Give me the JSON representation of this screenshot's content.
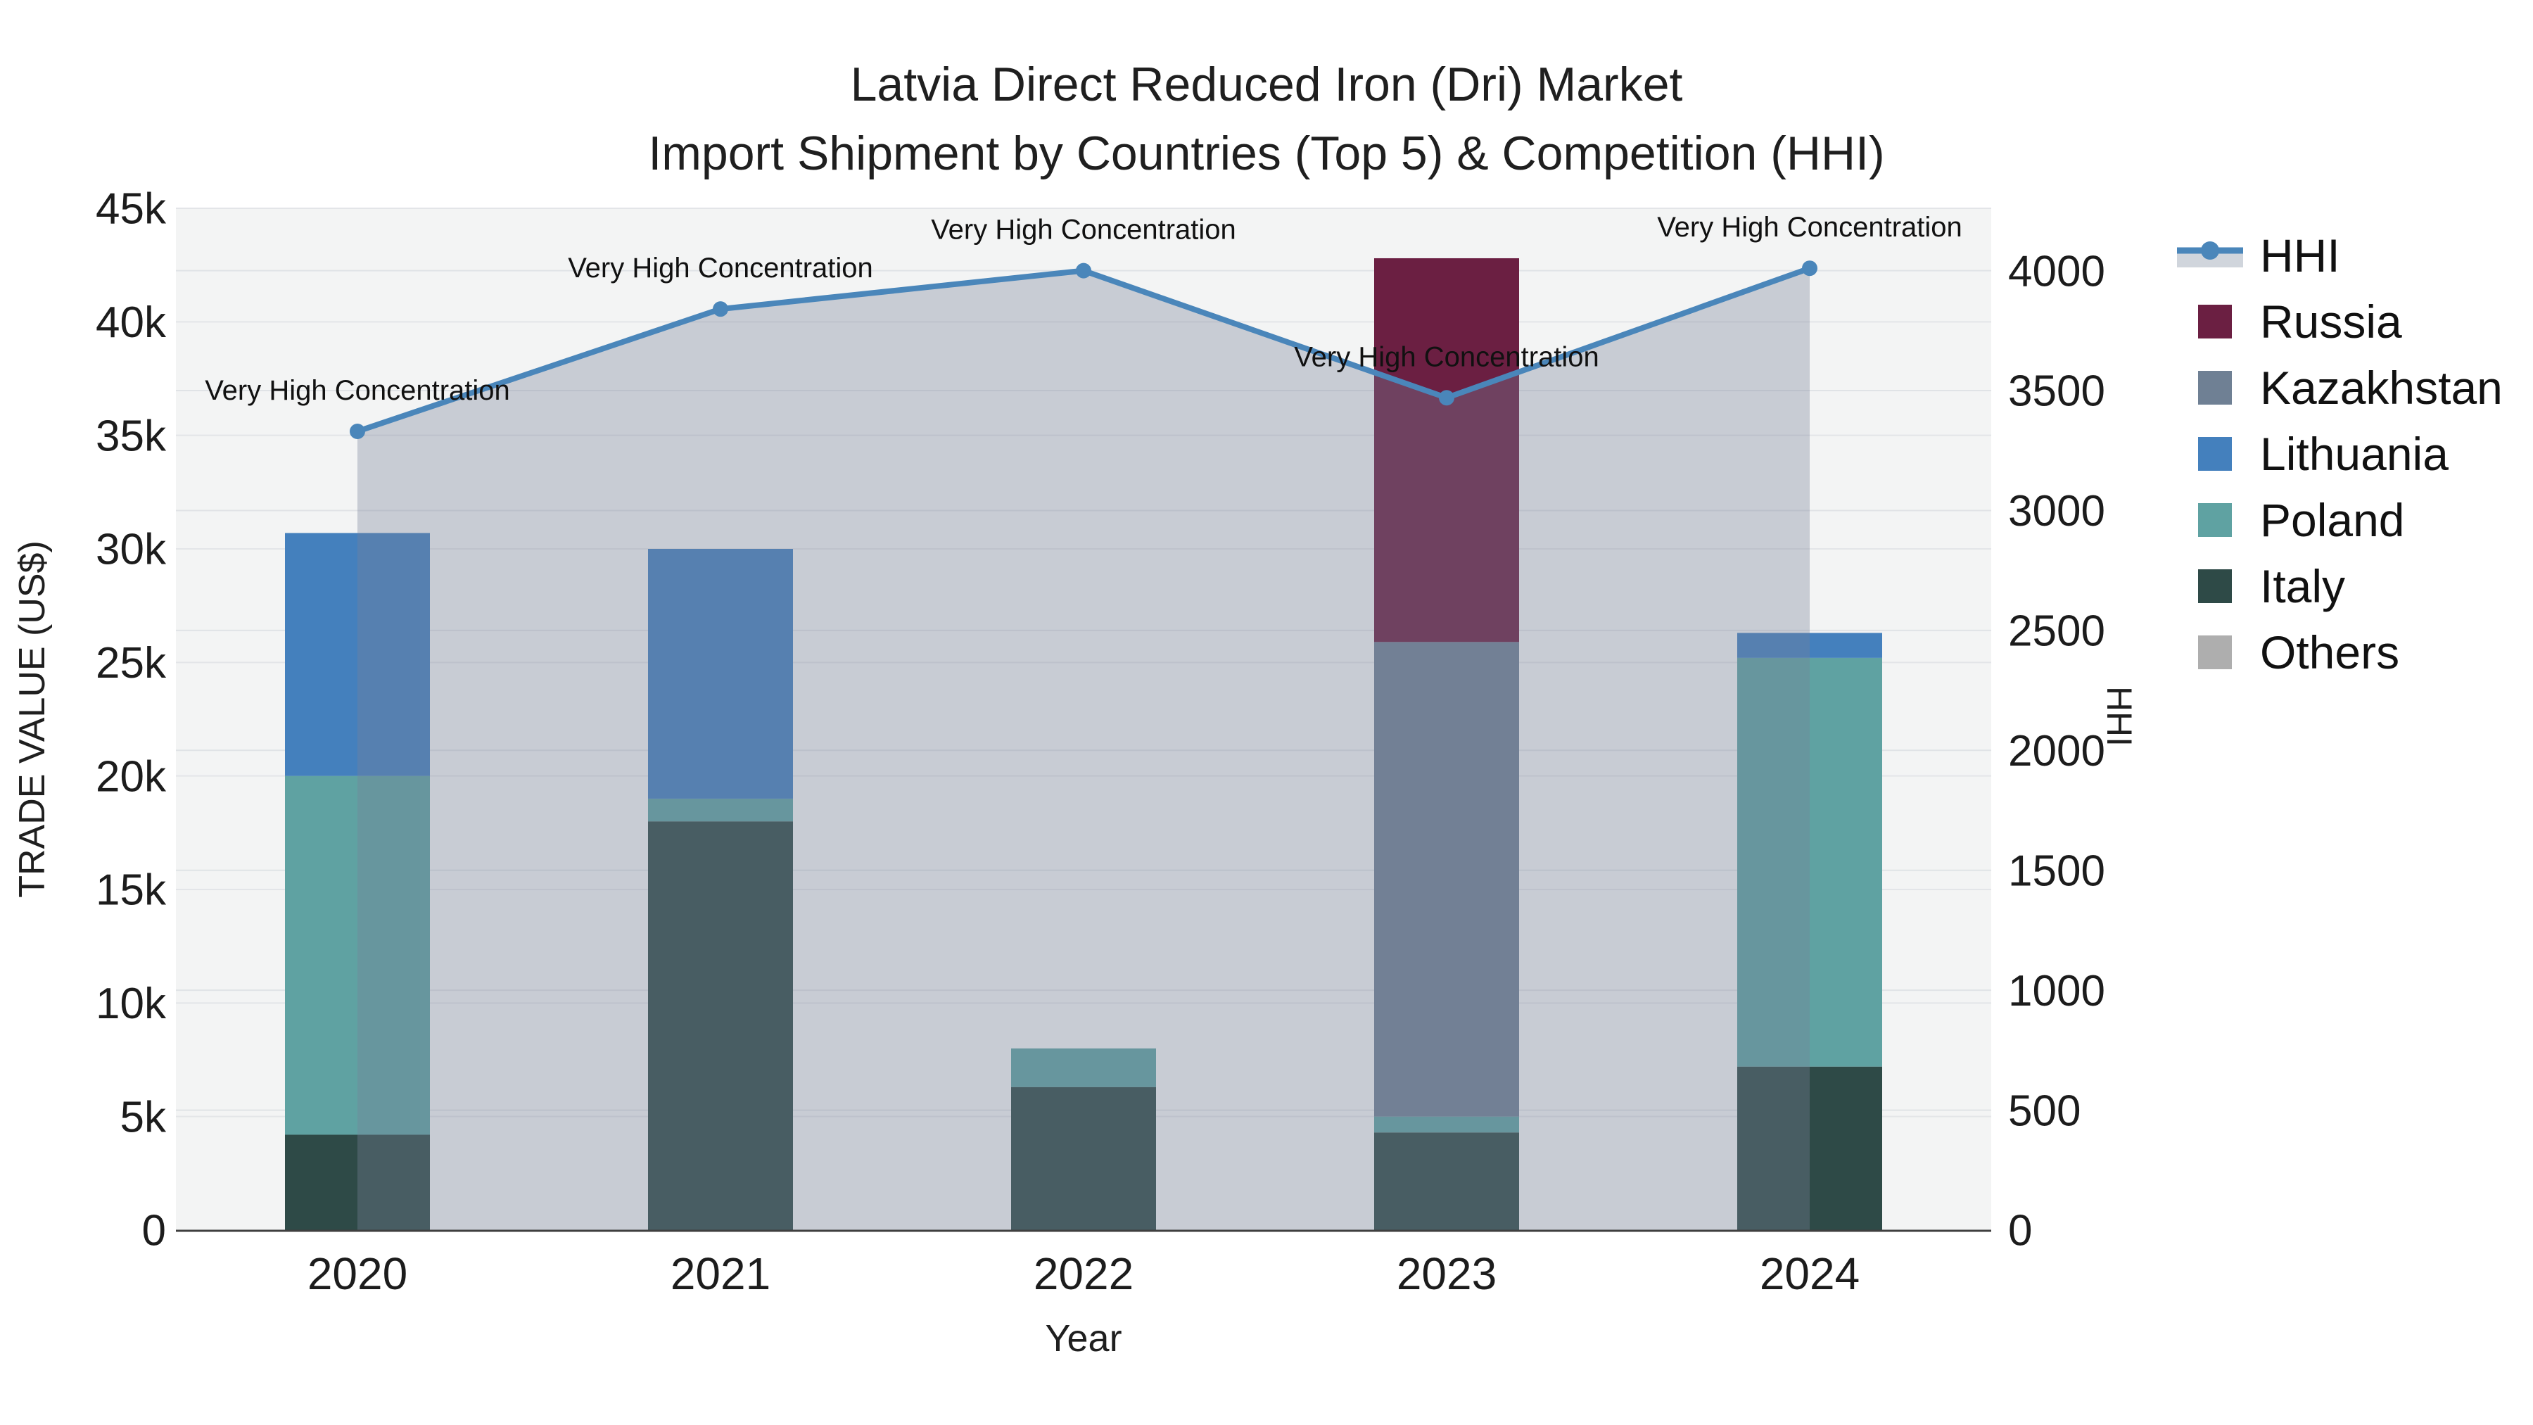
{
  "title": {
    "line1": "Latvia Direct Reduced Iron (Dri) Market",
    "line2": "Import Shipment by Countries (Top 5) & Competition (HHI)"
  },
  "axes": {
    "x_title": "Year",
    "y_left_title": "TRADE VALUE (US$)",
    "y_right_title": "HHI"
  },
  "legend": {
    "hhi_sample": {
      "band_color": "#d0d5dc",
      "line_color": "#4a86ba"
    },
    "items": [
      {
        "label": "HHI",
        "color": "#4a86ba",
        "kind": "line"
      },
      {
        "label": "Russia",
        "color": "#6b1f42",
        "kind": "bar"
      },
      {
        "label": "Kazakhstan",
        "color": "#6f8094",
        "kind": "bar"
      },
      {
        "label": "Lithuania",
        "color": "#4480bd",
        "kind": "bar"
      },
      {
        "label": "Poland",
        "color": "#5fa2a2",
        "kind": "bar"
      },
      {
        "label": "Italy",
        "color": "#2e4a47",
        "kind": "bar"
      },
      {
        "label": "Others",
        "color": "#aeaeae",
        "kind": "bar"
      }
    ]
  },
  "chart_data": {
    "type": "bar",
    "subtype": "stacked-bars-with-line",
    "title": "Latvia Direct Reduced Iron (Dri) Market — Import Shipment by Countries (Top 5) & Competition (HHI)",
    "xlabel": "Year",
    "ylabel_left": "TRADE VALUE (US$)",
    "ylabel_right": "HHI",
    "categories": [
      "2020",
      "2021",
      "2022",
      "2023",
      "2024"
    ],
    "series": [
      {
        "name": "Russia",
        "color": "#6b1f42",
        "values": [
          0,
          0,
          0,
          16900,
          0
        ]
      },
      {
        "name": "Kazakhstan",
        "color": "#6f8094",
        "values": [
          0,
          0,
          0,
          20900,
          0
        ]
      },
      {
        "name": "Lithuania",
        "color": "#4480bd",
        "values": [
          10700,
          11000,
          0,
          0,
          1100
        ]
      },
      {
        "name": "Poland",
        "color": "#5fa2a2",
        "values": [
          15800,
          1000,
          1700,
          700,
          18000
        ]
      },
      {
        "name": "Italy",
        "color": "#2e4a47",
        "values": [
          4200,
          18000,
          6300,
          4300,
          7200
        ]
      },
      {
        "name": "Others",
        "color": "#aeaeae",
        "values": [
          0,
          0,
          0,
          0,
          0
        ]
      }
    ],
    "line": {
      "name": "HHI",
      "values": [
        3330,
        3840,
        4000,
        3470,
        4010
      ],
      "color": "#4a86ba",
      "fill": "rgba(120,130,152,0.35)",
      "annotations": [
        "Very High Concentration",
        "Very High Concentration",
        "Very High Concentration",
        "Very High Concentration",
        "Very High Concentration"
      ]
    },
    "y_left": {
      "max": 45000,
      "ticks": [
        {
          "value": 0,
          "label": "0"
        },
        {
          "value": 5000,
          "label": "5k"
        },
        {
          "value": 10000,
          "label": "10k"
        },
        {
          "value": 15000,
          "label": "15k"
        },
        {
          "value": 20000,
          "label": "20k"
        },
        {
          "value": 25000,
          "label": "25k"
        },
        {
          "value": 30000,
          "label": "30k"
        },
        {
          "value": 35000,
          "label": "35k"
        },
        {
          "value": 40000,
          "label": "40k"
        },
        {
          "value": 45000,
          "label": "45k"
        }
      ]
    },
    "y_right": {
      "max_at_top": 4260,
      "ticks": [
        {
          "value": 0,
          "label": "0"
        },
        {
          "value": 500,
          "label": "500"
        },
        {
          "value": 1000,
          "label": "1000"
        },
        {
          "value": 1500,
          "label": "1500"
        },
        {
          "value": 2000,
          "label": "2000"
        },
        {
          "value": 2500,
          "label": "2500"
        },
        {
          "value": 3000,
          "label": "3000"
        },
        {
          "value": 3500,
          "label": "3500"
        },
        {
          "value": 4000,
          "label": "4000"
        }
      ]
    },
    "grid": true,
    "legend_position": "right",
    "colors": {
      "plot_bg": "#f3f4f4",
      "grid_left": "#e3e5e8",
      "grid_right": "#e0e3e6",
      "axis_line": "#3f3f3f",
      "tick_text": "#1c1c1c",
      "annotation_text": "#111111"
    }
  }
}
